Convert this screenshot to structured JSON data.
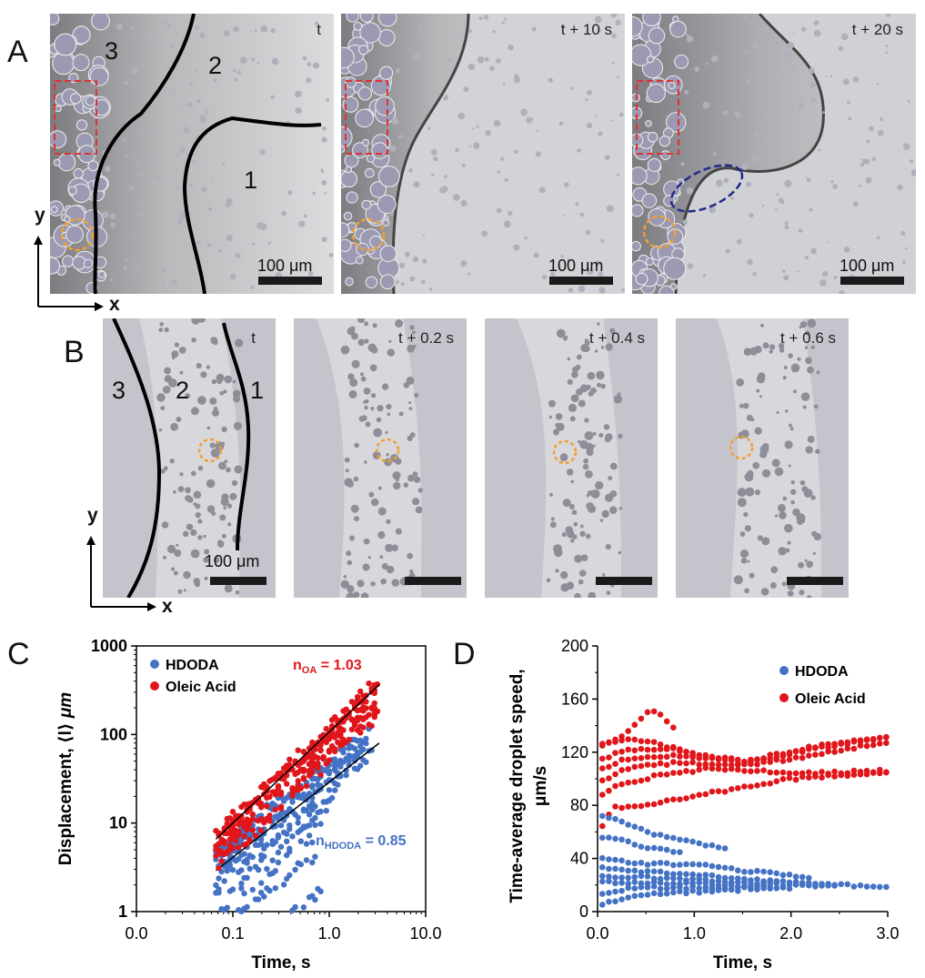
{
  "panelA": {
    "letter": "A",
    "frames": [
      {
        "time_label": "t",
        "scale_label": "100 μm",
        "regions": [
          "3",
          "2",
          "1"
        ]
      },
      {
        "time_label": "t + 10 s",
        "scale_label": "100 μm"
      },
      {
        "time_label": "t + 20 s",
        "scale_label": "100 μm"
      }
    ],
    "axis_y": "y",
    "axis_x": "x"
  },
  "panelB": {
    "letter": "B",
    "frames": [
      {
        "time_label": "t",
        "scale_label": "100 μm",
        "regions": [
          "3",
          "2",
          "1"
        ]
      },
      {
        "time_label": "t + 0.2 s"
      },
      {
        "time_label": "t + 0.4 s"
      },
      {
        "time_label": "t + 0.6 s"
      }
    ],
    "axis_y": "y",
    "axis_x": "x"
  },
  "colors": {
    "hdoda": "#4472c4",
    "oleic": "#e0161b",
    "orange_marker": "#f0a030",
    "red_box": "#e03030",
    "blue_ellipse": "#1f2a8a"
  },
  "chart_data": [
    {
      "panel": "C",
      "type": "scatter",
      "xscale": "log",
      "yscale": "log",
      "xlabel": "Time, s",
      "ylabel_main": "Displacement, ⟨l⟩",
      "ylabel_unit": "μm",
      "xlim": [
        0.01,
        10
      ],
      "ylim": [
        1,
        1000
      ],
      "x_ticks": [
        "0.0",
        "0.1",
        "1.0",
        "10.0"
      ],
      "y_ticks": [
        "1",
        "10",
        "100",
        "1000"
      ],
      "legend": [
        "HDODA",
        "Oleic Acid"
      ],
      "annotation_oa": {
        "prefix": "n",
        "sub": "OA",
        "suffix": " = 1.03"
      },
      "annotation_hdoda": {
        "prefix": "n",
        "sub": "HDODA",
        "suffix": " = 0.85"
      },
      "series": [
        {
          "name": "HDODA",
          "fit": {
            "exponent": 0.85,
            "coef": 29
          },
          "amp_range": [
            2,
            52
          ]
        },
        {
          "name": "Oleic Acid",
          "fit": {
            "exponent": 1.03,
            "coef": 107
          },
          "amp_range": [
            50,
            125
          ]
        }
      ]
    },
    {
      "panel": "D",
      "type": "scatter",
      "xlabel": "Time, s",
      "ylabel_line1": "Time-average droplet speed,",
      "ylabel_line2": "μm/s",
      "xlim": [
        0,
        3.0
      ],
      "ylim": [
        0,
        200
      ],
      "x_ticks": [
        "0.0",
        "1.0",
        "2.0",
        "3.0"
      ],
      "y_ticks": [
        "0",
        "40",
        "80",
        "120",
        "160",
        "200"
      ],
      "legend": [
        "HDODA",
        "Oleic Acid"
      ],
      "series": [
        {
          "name": "Oleic Acid",
          "tracks": [
            {
              "t_end": 3.0,
              "points": [
                [
                  0.05,
                  65
                ],
                [
                  0.15,
                  78
                ],
                [
                  0.5,
                  80
                ],
                [
                  1.0,
                  87
                ],
                [
                  2.0,
                  100
                ],
                [
                  3.0,
                  105
                ]
              ]
            },
            {
              "t_end": 3.0,
              "points": [
                [
                  0.05,
                  88
                ],
                [
                  0.2,
                  95
                ],
                [
                  0.6,
                  102
                ],
                [
                  1.2,
                  108
                ],
                [
                  2.0,
                  104
                ],
                [
                  3.0,
                  106
                ]
              ]
            },
            {
              "t_end": 3.0,
              "points": [
                [
                  0.05,
                  98
                ],
                [
                  0.3,
                  108
                ],
                [
                  0.8,
                  112
                ],
                [
                  1.5,
                  110
                ],
                [
                  2.2,
                  117
                ],
                [
                  3.0,
                  128
                ]
              ]
            },
            {
              "t_end": 3.0,
              "points": [
                [
                  0.05,
                  108
                ],
                [
                  0.3,
                  115
                ],
                [
                  0.8,
                  118
                ],
                [
                  1.5,
                  112
                ],
                [
                  2.2,
                  122
                ],
                [
                  3.0,
                  131
                ]
              ]
            },
            {
              "t_end": 3.0,
              "points": [
                [
                  0.05,
                  115
                ],
                [
                  0.3,
                  122
                ],
                [
                  0.8,
                  122
                ],
                [
                  1.5,
                  113
                ],
                [
                  2.2,
                  124
                ],
                [
                  3.0,
                  131
                ]
              ]
            },
            {
              "t_end": 0.8,
              "points": [
                [
                  0.05,
                  125
                ],
                [
                  0.3,
                  134
                ],
                [
                  0.55,
                  153
                ],
                [
                  0.65,
                  148
                ],
                [
                  0.8,
                  138
                ]
              ]
            },
            {
              "t_end": 1.0,
              "points": [
                [
                  0.05,
                  127
                ],
                [
                  0.4,
                  130
                ],
                [
                  0.7,
                  125
                ],
                [
                  1.0,
                  118
                ]
              ]
            }
          ]
        },
        {
          "name": "HDODA",
          "tracks": [
            {
              "t_end": 1.35,
              "points": [
                [
                  0.05,
                  72
                ],
                [
                  0.2,
                  70
                ],
                [
                  0.5,
                  60
                ],
                [
                  1.0,
                  52
                ],
                [
                  1.35,
                  47
                ]
              ]
            },
            {
              "t_end": 0.9,
              "points": [
                [
                  0.05,
                  55
                ],
                [
                  0.2,
                  55
                ],
                [
                  0.5,
                  48
                ],
                [
                  0.9,
                  44
                ]
              ]
            },
            {
              "t_end": 2.2,
              "points": [
                [
                  0.05,
                  40
                ],
                [
                  0.4,
                  36
                ],
                [
                  1.0,
                  36
                ],
                [
                  1.6,
                  30
                ],
                [
                  2.2,
                  26
                ]
              ]
            },
            {
              "t_end": 3.0,
              "points": [
                [
                  0.05,
                  33
                ],
                [
                  0.4,
                  30
                ],
                [
                  1.0,
                  28
                ],
                [
                  2.0,
                  22
                ],
                [
                  3.0,
                  18
                ]
              ]
            },
            {
              "t_end": 2.5,
              "points": [
                [
                  0.05,
                  27
                ],
                [
                  0.4,
                  26
                ],
                [
                  1.0,
                  24
                ],
                [
                  2.0,
                  20
                ],
                [
                  2.5,
                  19
                ]
              ]
            },
            {
              "t_end": 2.0,
              "points": [
                [
                  0.05,
                  22
                ],
                [
                  0.4,
                  22
                ],
                [
                  1.0,
                  21
                ],
                [
                  2.0,
                  18
                ]
              ]
            },
            {
              "t_end": 1.8,
              "points": [
                [
                  0.05,
                  14
                ],
                [
                  0.4,
                  18
                ],
                [
                  1.0,
                  18
                ],
                [
                  1.8,
                  17
                ]
              ]
            },
            {
              "t_end": 1.5,
              "points": [
                [
                  0.05,
                  6
                ],
                [
                  0.4,
                  12
                ],
                [
                  1.0,
                  15
                ],
                [
                  1.5,
                  16
                ]
              ]
            }
          ]
        }
      ]
    }
  ]
}
